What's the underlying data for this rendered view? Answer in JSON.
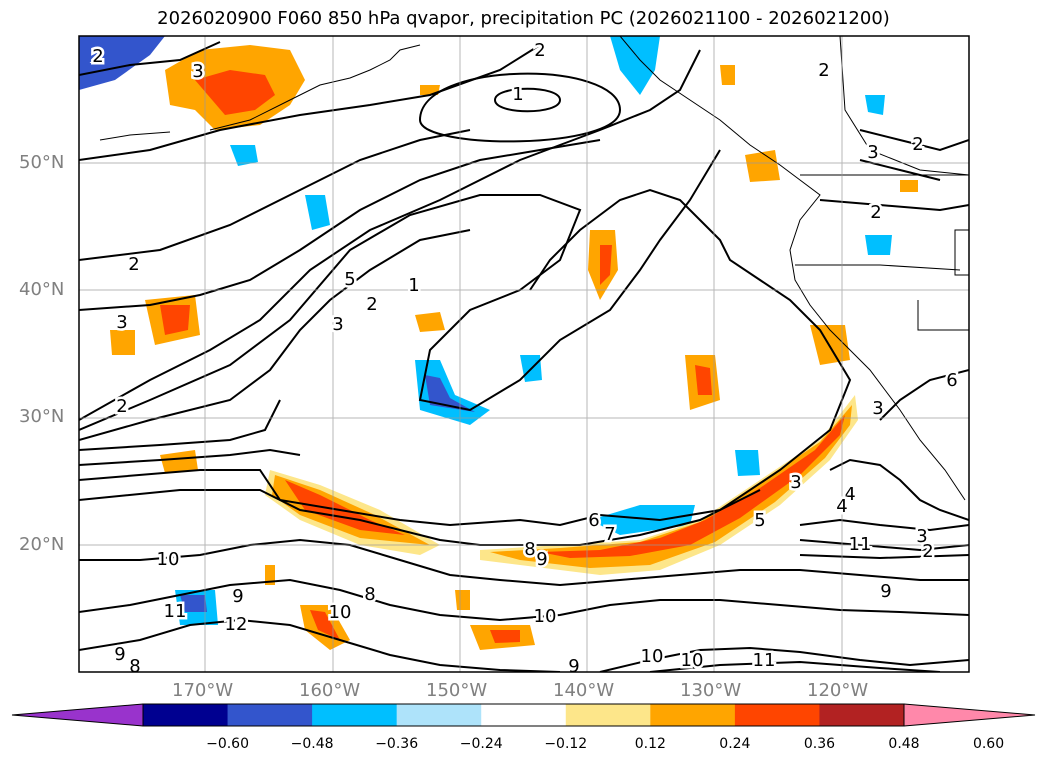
{
  "title": "2026020900 F060 850 hPa qvapor, precipitation PC (2026021100 - 2026021200)",
  "lat_labels": [
    "50°N",
    "40°N",
    "30°N",
    "20°N"
  ],
  "lon_labels": [
    "170°W",
    "160°W",
    "150°W",
    "140°W",
    "130°W",
    "120°W"
  ],
  "contour_labels": [
    "2",
    "3",
    "1",
    "2",
    "3",
    "2",
    "5",
    "1",
    "2",
    "3",
    "2",
    "3",
    "2",
    "6",
    "7",
    "8",
    "9",
    "10",
    "8",
    "10",
    "9",
    "10",
    "11",
    "12",
    "9",
    "8",
    "10",
    "10",
    "11",
    "11",
    "2",
    "3",
    "4",
    "4",
    "5",
    "9",
    "9",
    "3",
    "6",
    "3",
    "2",
    "2"
  ],
  "colorbar": {
    "ticks": [
      "−0.60",
      "−0.48",
      "−0.36",
      "−0.24",
      "−0.12",
      "0.12",
      "0.24",
      "0.36",
      "0.48",
      "0.60"
    ],
    "colors": [
      "#9933cc",
      "#000090",
      "#3355cc",
      "#00bfff",
      "#aee3fa",
      "#ffffff",
      "#fde68a",
      "#ffa500",
      "#ff4500",
      "#b22222",
      "#ff88aa"
    ]
  }
}
